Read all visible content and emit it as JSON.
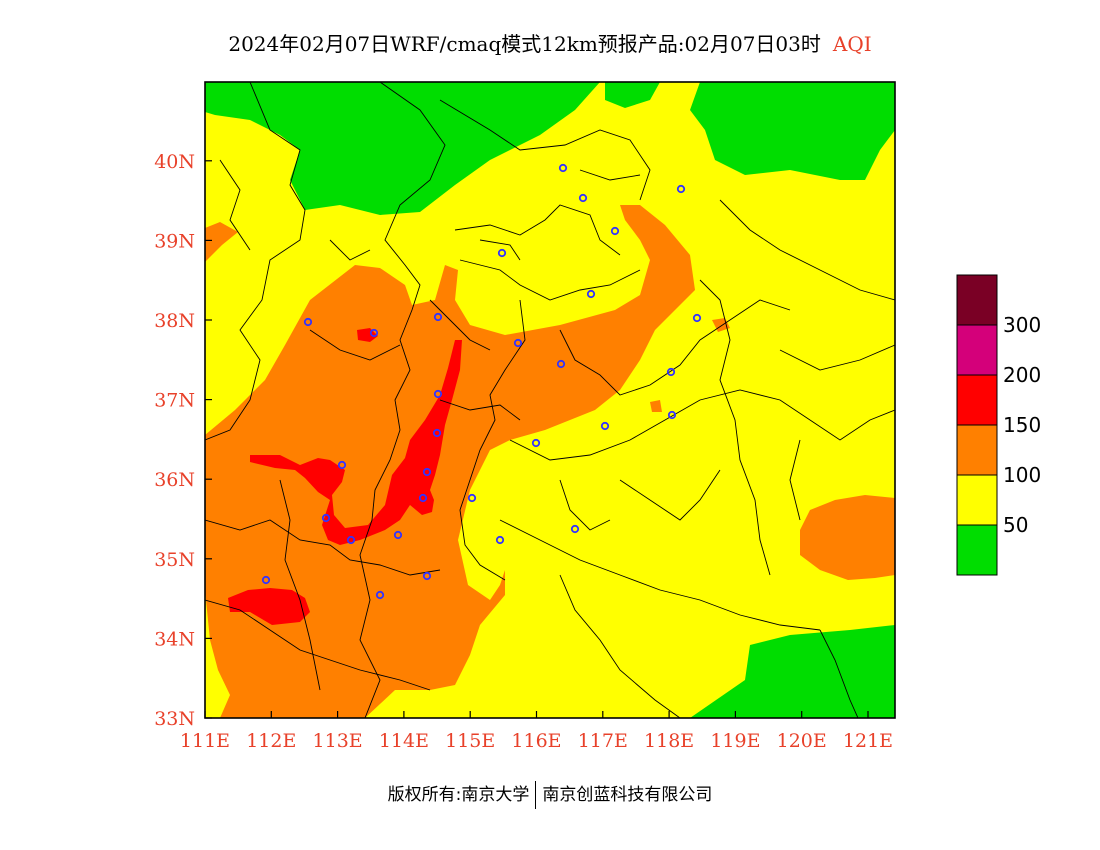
{
  "title": {
    "main": "2024年02月07日WRF/cmaq模式12km预报产品:02月07日03时",
    "suffix": "AQI"
  },
  "axes": {
    "x_ticks": [
      "111E",
      "112E",
      "113E",
      "114E",
      "115E",
      "116E",
      "117E",
      "118E",
      "119E",
      "120E",
      "121E"
    ],
    "y_ticks": [
      "33N",
      "34N",
      "35N",
      "36N",
      "37N",
      "38N",
      "39N",
      "40N"
    ],
    "lon_range": [
      111,
      121.4
    ],
    "lat_range": [
      33,
      41
    ]
  },
  "legend": {
    "bands": [
      {
        "color": "#00dd00",
        "label": "50"
      },
      {
        "color": "#ffff00",
        "label": "100"
      },
      {
        "color": "#ff8000",
        "label": "150"
      },
      {
        "color": "#ff0000",
        "label": "200"
      },
      {
        "color": "#d4007a",
        "label": "300"
      },
      {
        "color": "#7a0025",
        "label": ""
      }
    ]
  },
  "colors": {
    "good": "#00dd00",
    "moderate": "#ffff00",
    "sensitive": "#ff8000",
    "unhealthy": "#ff0000",
    "very_unhealthy": "#d4007a",
    "hazardous": "#7a0025",
    "tick_text": "#e8412a",
    "station_marker": "#3333ff"
  },
  "stations_shown": 30,
  "footer": {
    "left": "版权所有:南京大学",
    "right": "南京创蓝科技有限公司"
  }
}
